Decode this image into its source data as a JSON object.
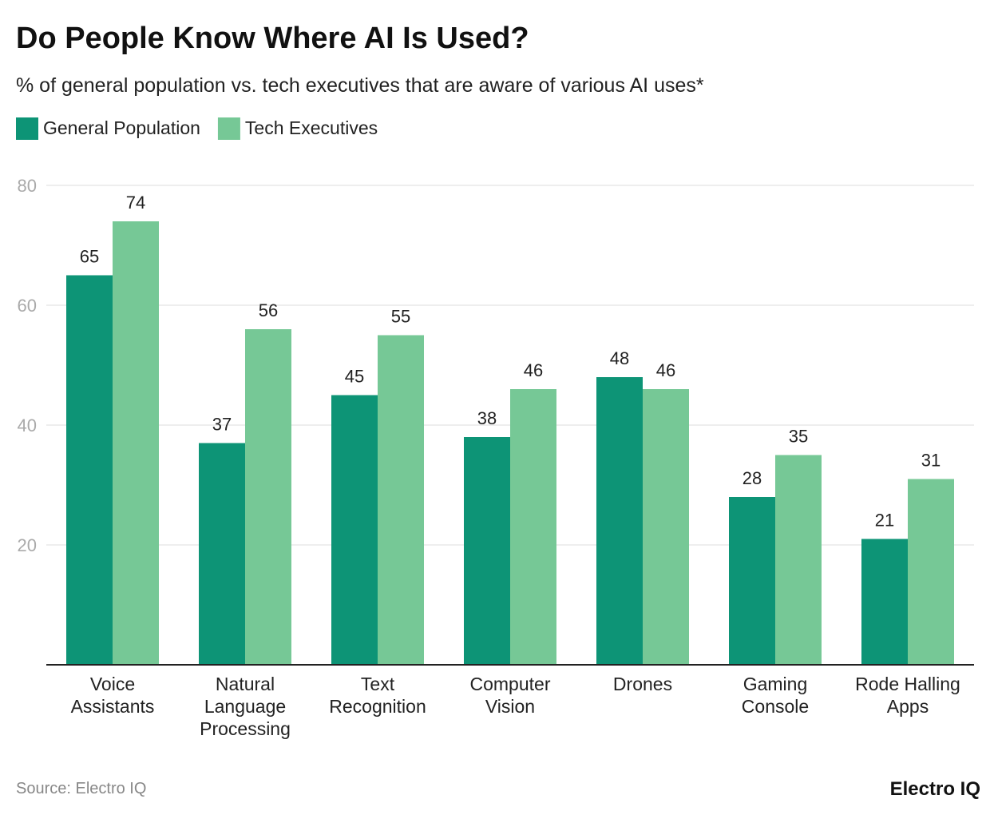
{
  "chart_data": {
    "type": "bar",
    "title": "Do People Know Where AI Is Used?",
    "subtitle": "% of general population vs. tech executives that are aware of various AI uses*",
    "categories": [
      "Voice\nAssistants",
      "Natural\nLanguage\nProcessing",
      "Text\nRecognition",
      "Computer\nVision",
      "Drones",
      "Gaming\nConsole",
      "Rode Halling\nApps"
    ],
    "series": [
      {
        "name": "General Population",
        "color": "#0d9476",
        "values": [
          65,
          37,
          45,
          38,
          48,
          28,
          21
        ]
      },
      {
        "name": "Tech Executives",
        "color": "#76c896",
        "values": [
          74,
          56,
          55,
          46,
          46,
          35,
          31
        ]
      }
    ],
    "ylim": [
      0,
      80
    ],
    "yticks": [
      20,
      40,
      60,
      80
    ],
    "grid": true,
    "source": "Source: Electro IQ",
    "brand": "Electro IQ"
  }
}
